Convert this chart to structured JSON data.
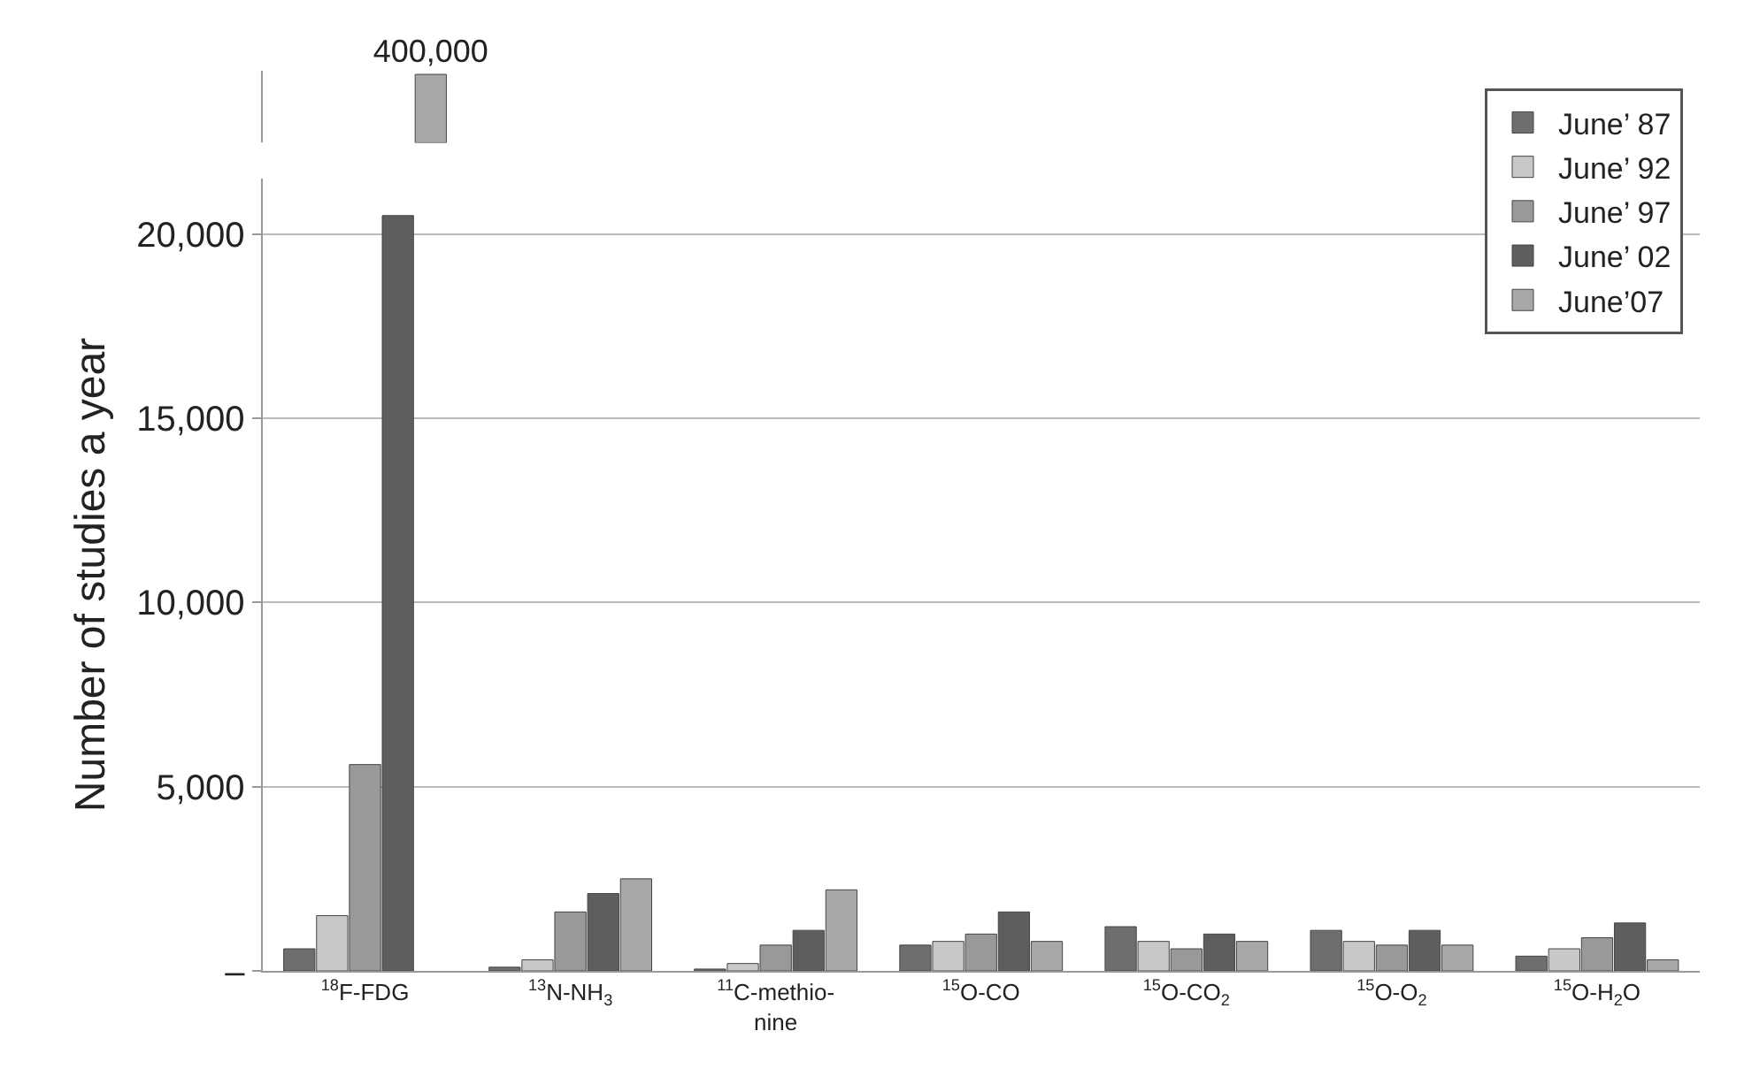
{
  "chart_data": [
    {
      "type": "bar",
      "categories": [
        "$^{18}$F-FDG",
        "$^{13}$N-NH$_{3}$",
        "$^{11}$C-methio-\nnine",
        "$^{15}$O-CO",
        "$^{15}$O-CO$_{2}$",
        "$^{15}$O-O$_{2}$",
        "$^{15}$O-H$_{2}$O"
      ],
      "tick_labels": false,
      "series": [
        {
          "color": "#6e6e6e",
          "values": [
            null,
            null,
            null,
            null,
            null,
            null,
            null
          ]
        },
        {
          "color": "#c8c8c8",
          "values": [
            null,
            null,
            null,
            null,
            null,
            null,
            null
          ]
        },
        {
          "color": "#999999",
          "values": [
            null,
            null,
            null,
            null,
            null,
            null,
            null
          ]
        },
        {
          "color": "#5e5e5e",
          "values": [
            null,
            null,
            null,
            null,
            null,
            null,
            null
          ]
        },
        {
          "color": "#a8a8a8",
          "values": [
            400000,
            null,
            null,
            null,
            null,
            null,
            null
          ],
          "value_labels": [
            "400,000",
            null,
            null,
            null,
            null,
            null,
            null
          ]
        }
      ]
    },
    {
      "type": "bar",
      "categories": [
        "$^{18}$F-FDG",
        "$^{13}$N-NH$_{3}$",
        "$^{11}$C-methio-\nnine",
        "$^{15}$O-CO",
        "$^{15}$O-CO$_{2}$",
        "$^{15}$O-O$_{2}$",
        "$^{15}$O-H$_{2}$O"
      ],
      "ylabel": "Number of studies a year",
      "ylim": [
        0,
        21500
      ],
      "yticks": [
        {
          "value": 0,
          "label": "–"
        },
        {
          "value": 5000,
          "label": "5,000"
        },
        {
          "value": 10000,
          "label": "10,000"
        },
        {
          "value": 15000,
          "label": "15,000"
        },
        {
          "value": 20000,
          "label": "20,000"
        }
      ],
      "grid": "y",
      "legend": "top right",
      "series": [
        {
          "name": "June’ 87",
          "color": "#6e6e6e",
          "values": [
            600,
            100,
            50,
            700,
            1200,
            1100,
            400
          ]
        },
        {
          "name": "June’ 92",
          "color": "#c8c8c8",
          "values": [
            1500,
            300,
            200,
            800,
            800,
            800,
            600
          ]
        },
        {
          "name": "June’ 97",
          "color": "#999999",
          "values": [
            5600,
            1600,
            700,
            1000,
            600,
            700,
            900
          ]
        },
        {
          "name": "June’ 02",
          "color": "#5e5e5e",
          "values": [
            20500,
            2100,
            1100,
            1600,
            1000,
            1100,
            1300
          ]
        },
        {
          "name": "June’07",
          "color": "#a8a8a8",
          "values": [
            null,
            2500,
            2200,
            800,
            800,
            700,
            300
          ]
        }
      ]
    }
  ]
}
